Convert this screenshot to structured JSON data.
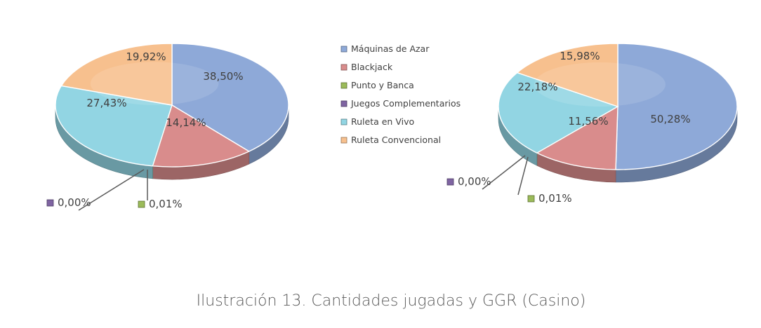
{
  "caption": "Ilustración 13. Cantidades jugadas y GGR (Casino)",
  "colors": {
    "maquinas": "#8EA9D8",
    "blackjack": "#D98C8C",
    "punto": "#9BBB59",
    "juegos": "#7F64A2",
    "ruleta_vivo": "#92D5E3",
    "ruleta_conv": "#F7C08E"
  },
  "chart_data": [
    {
      "type": "pie",
      "title": "",
      "legend": "right",
      "categories": [
        "Máquinas de Azar",
        "Blackjack",
        "Punto y Banca",
        "Juegos Complementarios",
        "Ruleta en Vivo",
        "Ruleta Convencional"
      ],
      "values": [
        38.5,
        14.14,
        0.01,
        0.0,
        27.43,
        19.92
      ],
      "labels": [
        "38,50%",
        "14,14%",
        "0,01%",
        "0,00%",
        "27,43%",
        "19,92%"
      ]
    },
    {
      "type": "pie",
      "title": "",
      "legend": "left",
      "categories": [
        "Máquinas de Azar",
        "Blackjack",
        "Punto y Banca",
        "Juegos Complementarios",
        "Ruleta en Vivo",
        "Ruleta Convencional"
      ],
      "values": [
        50.28,
        11.56,
        0.01,
        0.0,
        22.18,
        15.98
      ],
      "labels": [
        "50,28%",
        "11,56%",
        "0,01%",
        "0,00%",
        "22,18%",
        "15,98%"
      ]
    }
  ]
}
